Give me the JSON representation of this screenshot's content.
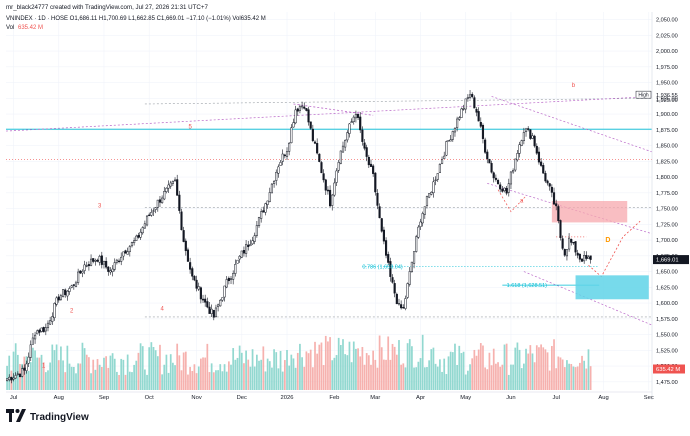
{
  "header": {
    "byline": "mr_black24777 created with TradingView.com, Jul 27, 2026 21:31 UTC+7",
    "symbol_line": "VNINDEX · 1D · HOSE  O1,686.11  H1,700.69  L1,662.85  C1,669.01  −17.10 (−1.01%)  Vol635.42 M",
    "vol_label": "Vol",
    "vol_value": "635.42 M"
  },
  "brand": {
    "name": "TradingView"
  },
  "colors": {
    "up": "#26a69a",
    "down": "#ef5350",
    "candle": "#131722",
    "grid": "#f0f3fa",
    "axis_text": "#131722",
    "fib_cyan": "#00bcd4",
    "box_cyan": "#5fd3e8",
    "box_red": "#f7a8ad",
    "dotted_purple": "#ba68c8",
    "dotted_red": "#ef5350",
    "wave_label": "#ef5350",
    "d_label": "#ff9800",
    "price_tag": "#131722"
  },
  "chart_data": {
    "type": "candlestick",
    "x_axis": {
      "ticks": [
        {
          "label": "Jul",
          "bar": 3
        },
        {
          "label": "Aug",
          "bar": 24
        },
        {
          "label": "Sep",
          "bar": 45
        },
        {
          "label": "Oct",
          "bar": 66
        },
        {
          "label": "Nov",
          "bar": 88
        },
        {
          "label": "Dec",
          "bar": 109
        },
        {
          "label": "2026",
          "bar": 130
        },
        {
          "label": "Feb",
          "bar": 152
        },
        {
          "label": "Mar",
          "bar": 171
        },
        {
          "label": "Apr",
          "bar": 192
        },
        {
          "label": "May",
          "bar": 213
        },
        {
          "label": "Jun",
          "bar": 234
        },
        {
          "label": "Jul",
          "bar": 255
        },
        {
          "label": "Aug",
          "bar": 277
        },
        {
          "label": "Sec",
          "bar": 298
        }
      ]
    },
    "y_axis": {
      "min": 1462,
      "max": 2062,
      "ticks": [
        "2,050.00",
        "2,025.00",
        "2,000.00",
        "1,975.00",
        "1,950.00",
        "1,925.00",
        "1,900.00",
        "1,875.00",
        "1,850.00",
        "1,825.00",
        "1,800.00",
        "1,775.00",
        "1,750.00",
        "1,725.00",
        "1,700.00",
        "1,675.00",
        "1,650.00",
        "1,625.00",
        "1,600.00",
        "1,575.00",
        "1,550.00",
        "1,525.00",
        "1,500.00",
        "1,475.00"
      ]
    },
    "price_series": {
      "bars": 272,
      "anchors": [
        [
          0,
          1480
        ],
        [
          8,
          1492
        ],
        [
          13,
          1555
        ],
        [
          18,
          1560
        ],
        [
          24,
          1610
        ],
        [
          30,
          1625
        ],
        [
          36,
          1660
        ],
        [
          42,
          1672
        ],
        [
          48,
          1650
        ],
        [
          54,
          1682
        ],
        [
          60,
          1700
        ],
        [
          66,
          1740
        ],
        [
          72,
          1770
        ],
        [
          78,
          1792
        ],
        [
          82,
          1700
        ],
        [
          86,
          1640
        ],
        [
          92,
          1600
        ],
        [
          96,
          1578
        ],
        [
          102,
          1632
        ],
        [
          108,
          1672
        ],
        [
          114,
          1705
        ],
        [
          120,
          1758
        ],
        [
          126,
          1820
        ],
        [
          130,
          1845
        ],
        [
          134,
          1908
        ],
        [
          138,
          1916
        ],
        [
          142,
          1860
        ],
        [
          146,
          1810
        ],
        [
          150,
          1760
        ],
        [
          154,
          1830
        ],
        [
          158,
          1870
        ],
        [
          162,
          1905
        ],
        [
          166,
          1840
        ],
        [
          170,
          1800
        ],
        [
          174,
          1710
        ],
        [
          178,
          1640
        ],
        [
          182,
          1593
        ],
        [
          184,
          1590
        ],
        [
          188,
          1665
        ],
        [
          192,
          1735
        ],
        [
          198,
          1790
        ],
        [
          204,
          1850
        ],
        [
          210,
          1898
        ],
        [
          215,
          1932
        ],
        [
          218,
          1905
        ],
        [
          222,
          1845
        ],
        [
          226,
          1800
        ],
        [
          232,
          1775
        ],
        [
          236,
          1830
        ],
        [
          240,
          1876
        ],
        [
          244,
          1865
        ],
        [
          248,
          1815
        ],
        [
          252,
          1780
        ],
        [
          255,
          1748
        ],
        [
          257,
          1705
        ],
        [
          259,
          1680
        ],
        [
          261,
          1700
        ],
        [
          263,
          1690
        ],
        [
          266,
          1672
        ],
        [
          269,
          1669
        ]
      ],
      "last_close": 1669.01
    },
    "volume_series": {
      "last_value": "635.42 M"
    },
    "levels": [
      {
        "label": "High",
        "value": "1,936.55"
      },
      {
        "label": "",
        "value": "1,925.00"
      }
    ],
    "last_price_tag": "1,669.01",
    "volume_tag": "635.42 M",
    "fib_labels": [
      {
        "text": "0.786 (1,658.04)",
        "price": 1658.04,
        "bar": 165
      },
      {
        "text": "1.618 (1,628.51)",
        "price": 1628.51,
        "bar": 232
      }
    ],
    "wave_labels": [
      {
        "text": "1",
        "bar": 17,
        "price": 1498
      },
      {
        "text": "2",
        "bar": 30,
        "price": 1585
      },
      {
        "text": "3",
        "bar": 43,
        "price": 1752
      },
      {
        "text": "4",
        "bar": 72,
        "price": 1588
      },
      {
        "text": "5",
        "bar": 85,
        "price": 1877
      },
      {
        "text": "a",
        "bar": 239,
        "price": 1760
      },
      {
        "text": "b",
        "bar": 263,
        "price": 1943
      }
    ],
    "annotation": {
      "text": "D",
      "bar": 279,
      "price": 1697
    }
  }
}
